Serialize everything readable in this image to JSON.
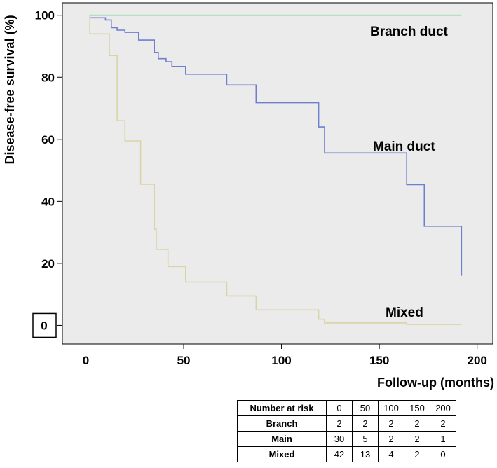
{
  "chart_data": {
    "type": "line",
    "step": true,
    "title": "",
    "xlabel": "Follow-up (months)",
    "ylabel": "Disease-free survival (%)",
    "xlim": [
      -12,
      208
    ],
    "ylim": [
      -6,
      104
    ],
    "x_ticks": [
      "0",
      "50",
      "100",
      "150",
      "200"
    ],
    "y_ticks": [
      "0",
      "20",
      "40",
      "60",
      "80",
      "100"
    ],
    "x_tick_values": [
      0,
      50,
      100,
      150,
      200
    ],
    "y_tick_values": [
      0,
      20,
      40,
      60,
      80,
      100
    ],
    "y_zero_boxed": true,
    "background": "#ebebeb",
    "grid": false,
    "series": [
      {
        "name": "Branch duct",
        "color": "#7fd68c",
        "points": [
          [
            2,
            100
          ],
          [
            192,
            100
          ]
        ]
      },
      {
        "name": "Main duct",
        "color": "#6f7fcf",
        "points": [
          [
            2,
            99.2
          ],
          [
            10,
            99.2
          ],
          [
            10,
            98.5
          ],
          [
            13,
            98.5
          ],
          [
            13,
            96
          ],
          [
            16,
            96
          ],
          [
            16,
            95.2
          ],
          [
            20,
            95.2
          ],
          [
            20,
            94.5
          ],
          [
            27,
            94.5
          ],
          [
            27,
            92
          ],
          [
            35,
            92
          ],
          [
            35,
            88
          ],
          [
            37,
            88
          ],
          [
            37,
            86
          ],
          [
            41,
            86
          ],
          [
            41,
            85
          ],
          [
            44,
            85
          ],
          [
            44,
            83.5
          ],
          [
            51,
            83.5
          ],
          [
            51,
            81
          ],
          [
            72,
            81
          ],
          [
            72,
            77.5
          ],
          [
            87,
            77.5
          ],
          [
            87,
            71.8
          ],
          [
            119,
            71.8
          ],
          [
            119,
            64
          ],
          [
            122,
            64
          ],
          [
            122,
            55.6
          ],
          [
            164,
            55.6
          ],
          [
            164,
            45.4
          ],
          [
            173,
            45.4
          ],
          [
            173,
            32
          ],
          [
            192,
            32
          ],
          [
            192,
            16
          ]
        ]
      },
      {
        "name": "Mixed",
        "color": "#d9d4a8",
        "points": [
          [
            2,
            100
          ],
          [
            2,
            94
          ],
          [
            12,
            94
          ],
          [
            12,
            87
          ],
          [
            16,
            87
          ],
          [
            16,
            66
          ],
          [
            20,
            66
          ],
          [
            20,
            59.5
          ],
          [
            28,
            59.5
          ],
          [
            28,
            45.5
          ],
          [
            35,
            45.5
          ],
          [
            35,
            31
          ],
          [
            36,
            31
          ],
          [
            36,
            24.5
          ],
          [
            42,
            24.5
          ],
          [
            42,
            19
          ],
          [
            51,
            19
          ],
          [
            51,
            14
          ],
          [
            72,
            14
          ],
          [
            72,
            9.5
          ],
          [
            87,
            9.5
          ],
          [
            87,
            5
          ],
          [
            119,
            5
          ],
          [
            119,
            2
          ],
          [
            122,
            2
          ],
          [
            122,
            0.8
          ],
          [
            164,
            0.8
          ],
          [
            164,
            0.3
          ],
          [
            192,
            0.3
          ]
        ]
      }
    ]
  },
  "risk_table": {
    "header": "Number at risk",
    "columns": [
      "0",
      "50",
      "100",
      "150",
      "200"
    ],
    "rows": [
      {
        "label": "Branch",
        "values": [
          "2",
          "2",
          "2",
          "2",
          "2"
        ]
      },
      {
        "label": "Main",
        "values": [
          "30",
          "5",
          "2",
          "2",
          "1"
        ]
      },
      {
        "label": "Mixed",
        "values": [
          "42",
          "13",
          "4",
          "2",
          "0"
        ]
      }
    ]
  }
}
